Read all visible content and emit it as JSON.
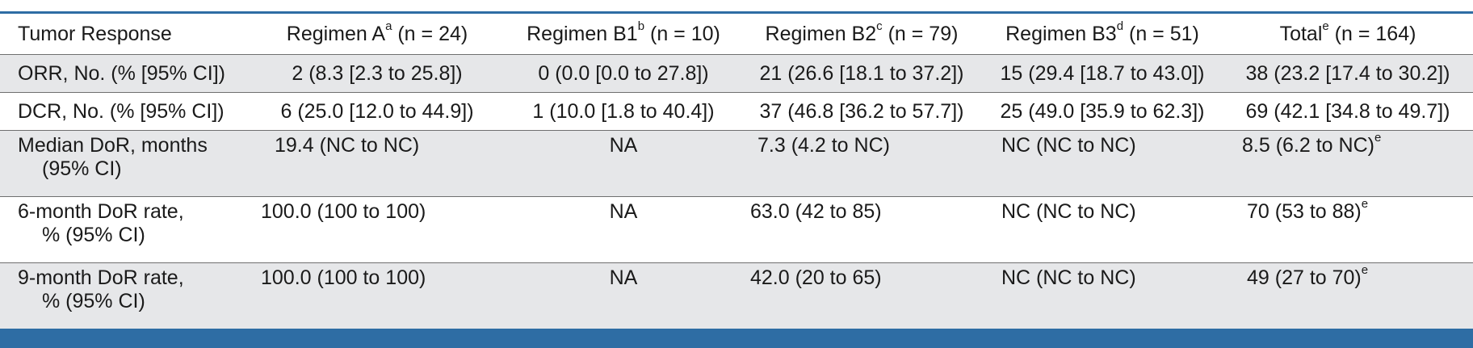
{
  "header": {
    "tumor_response": "Tumor Response",
    "col_a": {
      "label": "Regimen A",
      "sup": "a",
      "n": " (n = 24)"
    },
    "col_b1": {
      "label": "Regimen B1",
      "sup": "b",
      "n": " (n = 10)"
    },
    "col_b2": {
      "label": "Regimen B2",
      "sup": "c",
      "n": " (n = 79)"
    },
    "col_b3": {
      "label": "Regimen B3",
      "sup": "d",
      "n": " (n = 51)"
    },
    "col_total": {
      "label": "Total",
      "sup": "e",
      "n": " (n = 164)"
    }
  },
  "rows": [
    {
      "label": "ORR, No. (% [95% CI])",
      "label_line2": "",
      "a": "2 (8.3 [2.3 to 25.8])",
      "b1": "0 (0.0 [0.0 to 27.8])",
      "b2": "21 (26.6 [18.1 to 37.2])",
      "b3": "15 (29.4 [18.7 to 43.0])",
      "total": "38 (23.2 [17.4 to 30.2])",
      "total_sup": ""
    },
    {
      "label": "DCR, No. (% [95% CI])",
      "label_line2": "",
      "a": "6 (25.0 [12.0 to 44.9])",
      "b1": "1 (10.0 [1.8 to 40.4])",
      "b2": "37 (46.8 [36.2 to 57.7])",
      "b3": "25 (49.0 [35.9 to 62.3])",
      "total": "69 (42.1 [34.8 to 49.7])",
      "total_sup": ""
    },
    {
      "label": "Median DoR, months",
      "label_line2": "(95% CI)",
      "a": "19.4 (NC to NC)",
      "b1": "NA",
      "b2": "7.3 (4.2 to NC)",
      "b3": "NC (NC to NC)",
      "total": "8.5 (6.2 to NC)",
      "total_sup": "e"
    },
    {
      "label": "6-month DoR rate,",
      "label_line2": "% (95% CI)",
      "a": "100.0 (100 to 100)",
      "b1": "NA",
      "b2": "63.0 (42 to 85)",
      "b3": "NC (NC to NC)",
      "total": "70 (53 to 88)",
      "total_sup": "e"
    },
    {
      "label": "9-month DoR rate,",
      "label_line2": "% (95% CI)",
      "a": "100.0 (100 to 100)",
      "b1": "NA",
      "b2": "42.0 (20 to 65)",
      "b3": "NC (NC to NC)",
      "total": "49 (27 to 70)",
      "total_sup": "e"
    }
  ]
}
